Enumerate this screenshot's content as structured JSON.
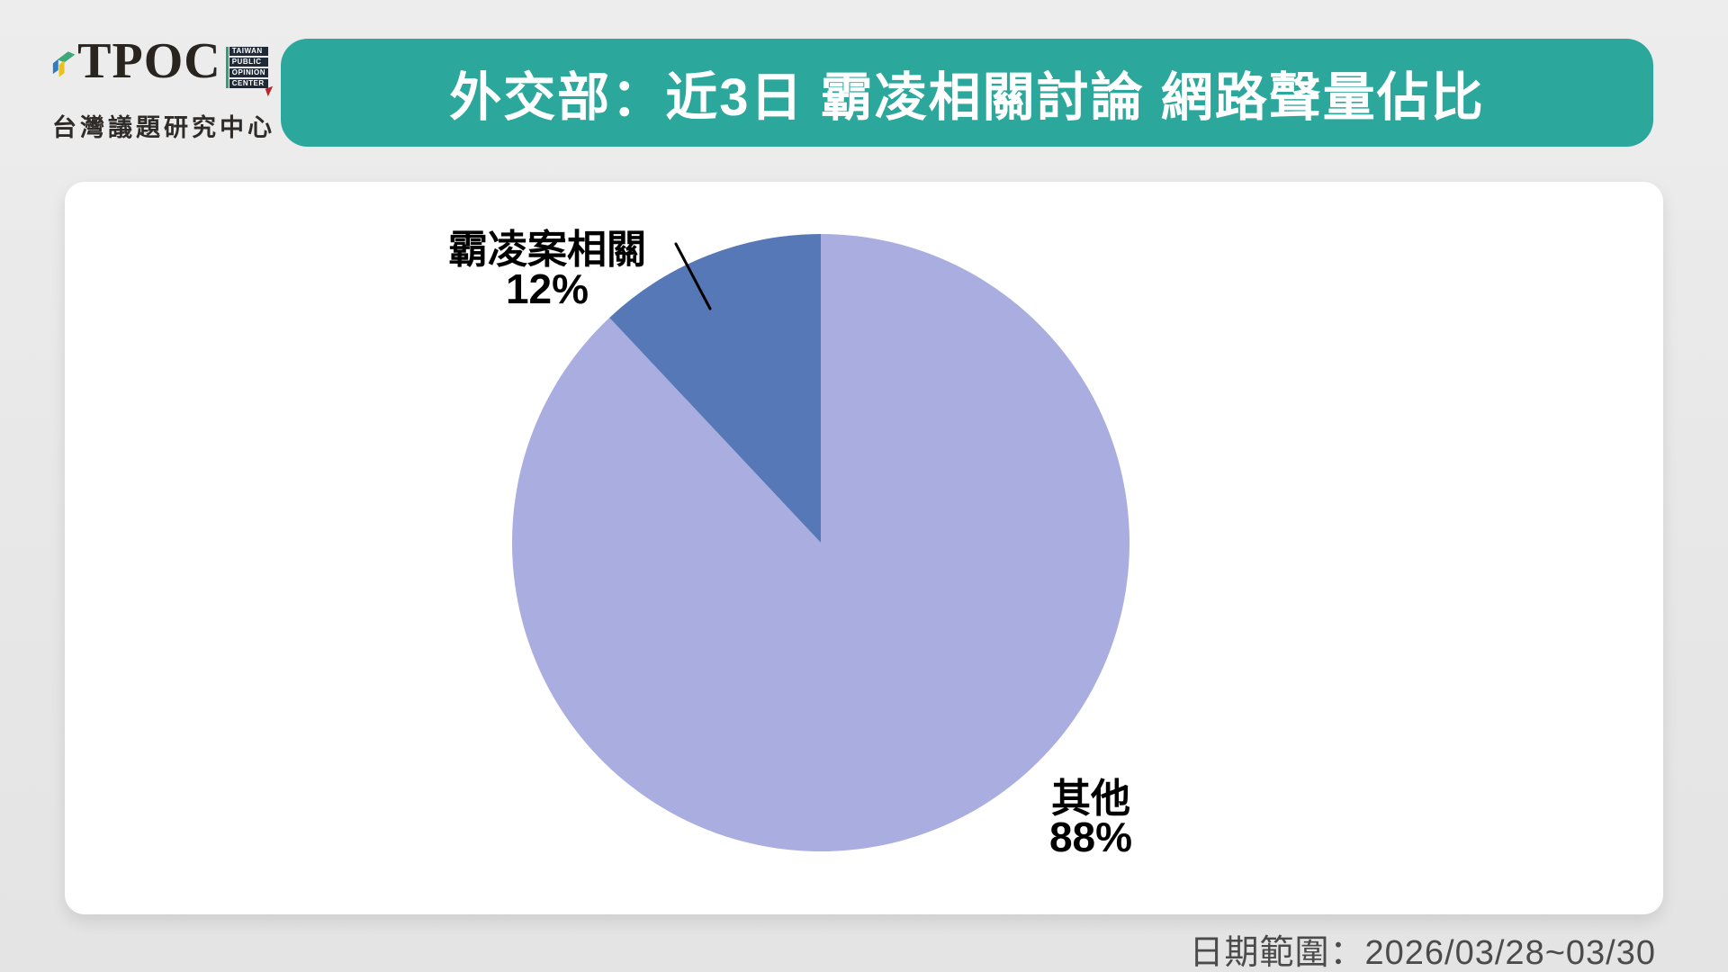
{
  "logo": {
    "brand": "TPOC",
    "brand_box_lines": [
      "TAIWAN",
      "PUBLIC",
      "OPINION",
      "CENTER"
    ],
    "brand_cjk": "台灣議題研究中心"
  },
  "header": {
    "title": "外交部：近3日 霸凌相關討論 網路聲量佔比",
    "bg_color": "#2BA89B"
  },
  "footer": {
    "date_range": "日期範圍：2026/03/28~03/30"
  },
  "chart_data": {
    "type": "pie",
    "title": "外交部：近3日 霸凌相關討論 網路聲量佔比",
    "start_angle_deg": -90,
    "direction": "clockwise",
    "legend": "none",
    "slices": [
      {
        "label": "其他",
        "value": 88,
        "value_label": "88%",
        "color": "#A9ADE0"
      },
      {
        "label": "霸凌案相關",
        "value": 12,
        "value_label": "12%",
        "color": "#5678B7"
      }
    ],
    "annotations": {
      "leader_line_color": "#000000"
    }
  }
}
